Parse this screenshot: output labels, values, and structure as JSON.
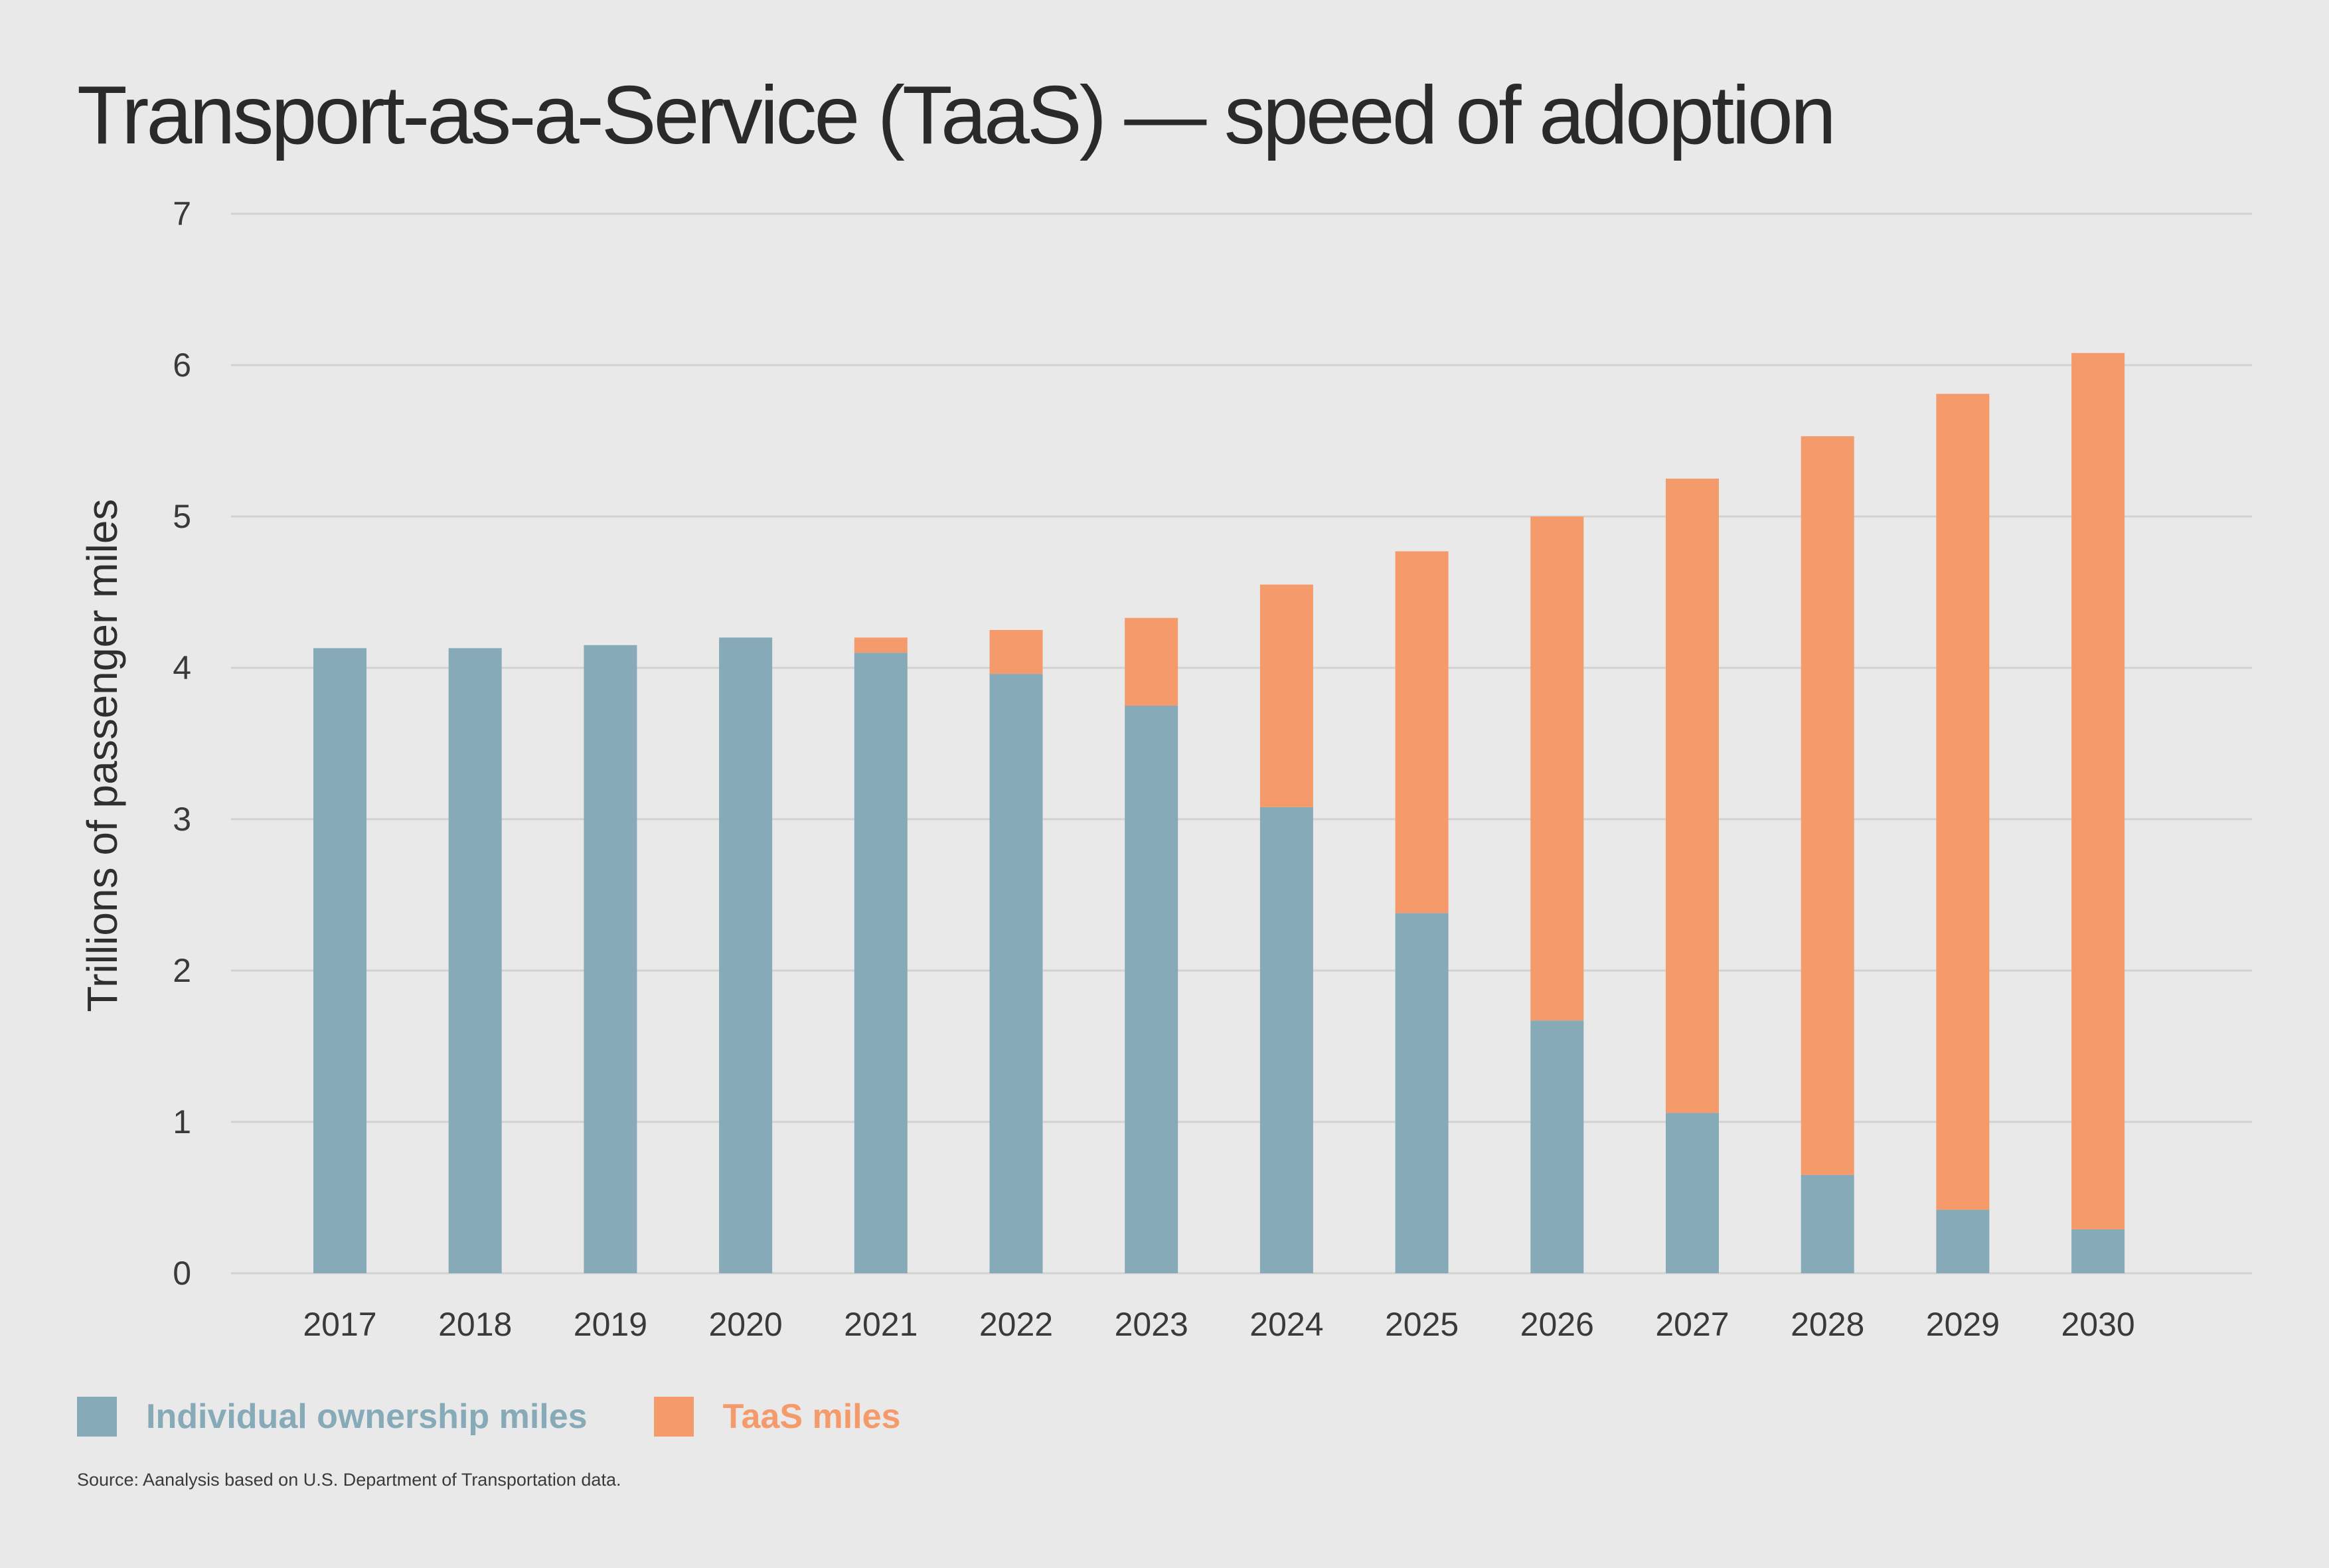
{
  "title": "Transport-as-a-Service (TaaS) — speed of adoption",
  "source": "Source: Aanalysis based on U.S. Department of Transportation data.",
  "colors": {
    "individual": "#86aab7",
    "taas": "#f59a6a",
    "grid": "#d2d2d2",
    "background": "#e9e9e9"
  },
  "chart_data": {
    "type": "bar",
    "stacked": true,
    "ylabel": "Trillions of passenger miles",
    "xlabel": "",
    "ylim": [
      0,
      7
    ],
    "yticks": [
      "0",
      "1",
      "2",
      "3",
      "4",
      "5",
      "6",
      "7"
    ],
    "grid": true,
    "legend": "bottom-left",
    "categories": [
      "2017",
      "2018",
      "2019",
      "2020",
      "2021",
      "2022",
      "2023",
      "2024",
      "2025",
      "2026",
      "2027",
      "2028",
      "2029",
      "2030"
    ],
    "series": [
      {
        "name": "Individual ownership miles",
        "color": "#86aab7",
        "values": [
          4.13,
          4.13,
          4.15,
          4.2,
          4.1,
          3.96,
          3.75,
          3.08,
          2.38,
          1.67,
          1.06,
          0.65,
          0.42,
          0.29
        ]
      },
      {
        "name": "TaaS miles",
        "color": "#f59a6a",
        "values": [
          0,
          0,
          0,
          0,
          0.1,
          0.29,
          0.58,
          1.47,
          2.39,
          3.33,
          4.19,
          4.88,
          5.39,
          5.79
        ]
      }
    ]
  }
}
